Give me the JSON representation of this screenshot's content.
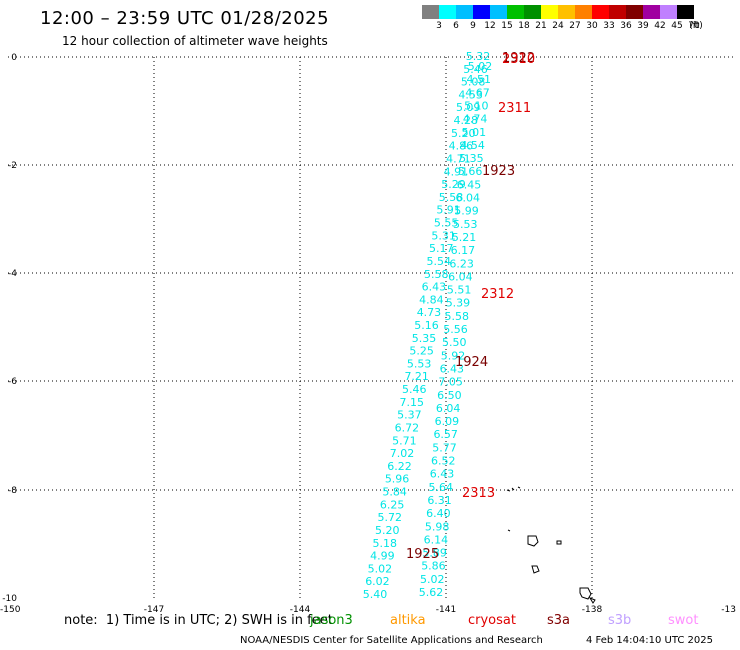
{
  "header": {
    "title": "12:00 – 23:59 UTC 01/28/2025",
    "subtitle": "12 hour collection of altimeter wave heights"
  },
  "colorbar": {
    "colors": [
      "#808080",
      "#00ffff",
      "#00bfff",
      "#0000ff",
      "#00c0ff",
      "#00c000",
      "#009000",
      "#ffff00",
      "#ffc000",
      "#ff8000",
      "#ff0000",
      "#c00000",
      "#800000",
      "#a000a0",
      "#c080ff",
      "#000000"
    ],
    "labels": [
      "3",
      "6",
      "9",
      "12",
      "15",
      "18",
      "21",
      "24",
      "27",
      "30",
      "33",
      "36",
      "39",
      "42",
      "45",
      "70",
      "(ft)"
    ]
  },
  "map": {
    "x_ticks": [
      "-150",
      "-147",
      "-144",
      "-141",
      "-138",
      "-13"
    ],
    "y_ticks": [
      "0",
      "-2",
      "-4",
      "-6",
      "-8",
      "-10"
    ],
    "track_a": {
      "color": "#00e5e5",
      "values": [
        "5.32",
        "5.46",
        "5.08",
        "4.53",
        "5.09",
        "4.28",
        "5.20",
        "4.86",
        "4.71",
        "4.91",
        "5.29",
        "5.58",
        "5.91",
        "5.55",
        "5.31",
        "5.17",
        "5.54",
        "5.58",
        "6.43",
        "4.84",
        "4.73",
        "5.16",
        "5.35",
        "5.25",
        "5.53",
        "7.21",
        "5.46",
        "7.15",
        "5.37",
        "6.72",
        "5.71",
        "7.02",
        "6.22",
        "5.96",
        "5.84",
        "6.25",
        "5.72",
        "5.20",
        "5.18",
        "4.99",
        "5.02",
        "6.02",
        "5.40"
      ]
    },
    "track_b": {
      "color": "#00e5e5",
      "values": [
        "5.02",
        "4.51",
        "4.67",
        "5.10",
        "4.74",
        "5.01",
        "4.54",
        "5.35",
        "5.66",
        "6.45",
        "6.04",
        "5.99",
        "5.53",
        "5.21",
        "6.17",
        "6.23",
        "6.04",
        "5.51",
        "5.39",
        "5.58",
        "5.56",
        "5.50",
        "5.92",
        "6.43",
        "7.05",
        "6.50",
        "6.04",
        "6.09",
        "6.57",
        "5.77",
        "6.52",
        "6.43",
        "5.64",
        "6.31",
        "6.40",
        "5.98",
        "6.14",
        "5.89",
        "5.86",
        "5.02",
        "5.62"
      ]
    },
    "pass_labels": [
      {
        "text": "1922",
        "color": "#7a0000"
      },
      {
        "text": "2310",
        "color": "#e00000"
      },
      {
        "text": "2311",
        "color": "#e00000"
      },
      {
        "text": "1923",
        "color": "#7a0000"
      },
      {
        "text": "2312",
        "color": "#e00000"
      },
      {
        "text": "1924",
        "color": "#7a0000"
      },
      {
        "text": "2313",
        "color": "#e00000"
      },
      {
        "text": "1925",
        "color": "#7a0000"
      }
    ]
  },
  "footer": {
    "note": "note:  1) Time is in UTC; 2) SWH is in feet",
    "satellites": [
      {
        "name": "jason3",
        "color": "#009000"
      },
      {
        "name": "altika",
        "color": "#ff9900"
      },
      {
        "name": "cryosat",
        "color": "#e00000"
      },
      {
        "name": "s3a",
        "color": "#800000"
      },
      {
        "name": "s3b",
        "color": "#c0a0ff"
      },
      {
        "name": "swot",
        "color": "#ff90ff"
      }
    ],
    "credit": "NOAA/NESDIS Center for Satellite Applications and Research",
    "timestamp": "4 Feb 14:04:10 UTC 2025"
  }
}
